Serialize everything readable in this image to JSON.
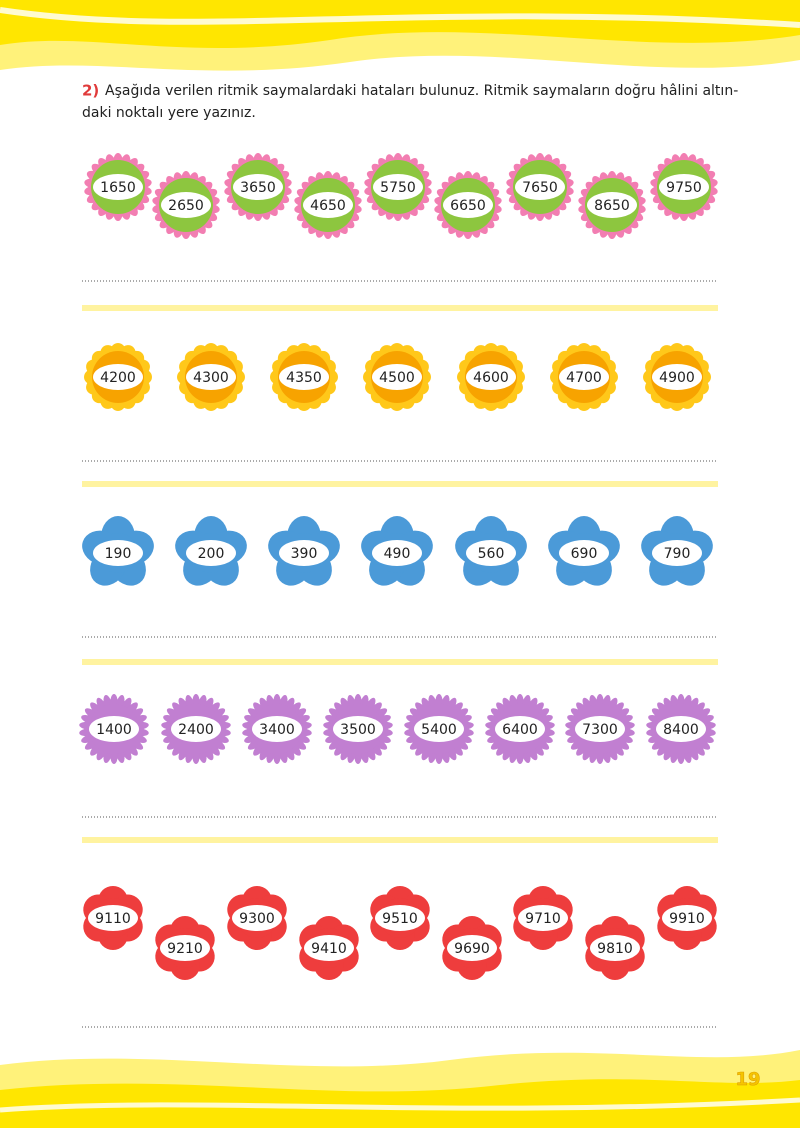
{
  "question": {
    "number": "2)",
    "lines": [
      "Aşağıda verilen ritmik saymalardaki hataları bulunuz. Ritmik saymaların doğru hâlini altın-",
      "daki noktalı yere yazınız."
    ]
  },
  "rows": [
    {
      "numbers": [
        "1650",
        "2650",
        "3650",
        "4650",
        "5750",
        "6650",
        "7650",
        "8650",
        "9750"
      ]
    },
    {
      "numbers": [
        "4200",
        "4300",
        "4350",
        "4500",
        "4600",
        "4700",
        "4900"
      ]
    },
    {
      "numbers": [
        "190",
        "200",
        "390",
        "490",
        "560",
        "690",
        "790"
      ]
    },
    {
      "numbers": [
        "1400",
        "2400",
        "3400",
        "3500",
        "5400",
        "6400",
        "7300",
        "8400"
      ]
    },
    {
      "numbers": [
        "9110",
        "9210",
        "9300",
        "9410",
        "9510",
        "9690",
        "9710",
        "9810",
        "9910"
      ]
    }
  ],
  "page_number": "19"
}
